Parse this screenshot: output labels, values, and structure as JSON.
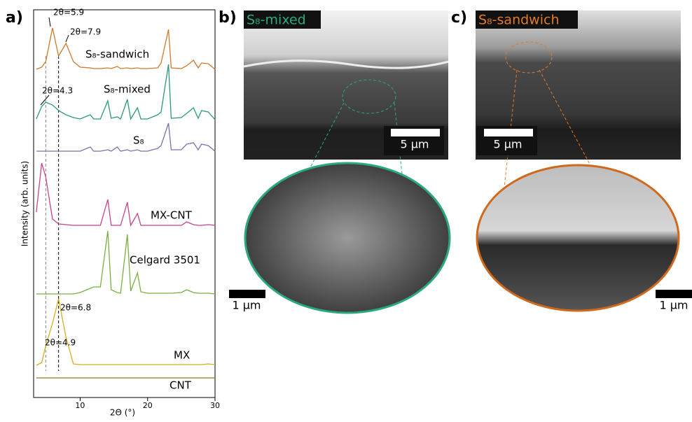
{
  "panels": {
    "a": "a)",
    "b": "b)",
    "c": "c)"
  },
  "chart_data": {
    "type": "line",
    "x_label": "2Θ (°)",
    "y_label": "Intensity (arb. units)",
    "xlim": [
      3.1,
      30
    ],
    "xticks": [
      10,
      20,
      30
    ],
    "x": [
      3.5,
      4.3,
      4.9,
      5.9,
      6.8,
      7.9,
      9,
      10,
      11.5,
      12,
      13,
      14.1,
      14.6,
      15.5,
      16,
      17,
      17.5,
      18.5,
      19,
      20,
      21.5,
      22,
      23.1,
      23.5,
      25,
      25.8,
      26.8,
      27.5,
      28,
      29,
      30
    ],
    "series": [
      {
        "name": "S₈-sandwich",
        "color": "#d07a2a",
        "values": [
          1,
          4,
          12,
          60,
          20,
          38,
          12,
          4,
          3,
          2,
          2,
          3,
          2,
          5,
          2,
          3,
          2,
          3,
          2,
          2,
          3,
          10,
          58,
          3,
          2,
          6,
          14,
          3,
          10,
          9,
          1
        ]
      },
      {
        "name": "S₈-mixed",
        "color": "#2a9a7a",
        "values": [
          2,
          20,
          26,
          22,
          14,
          8,
          4,
          2,
          8,
          2,
          2,
          28,
          3,
          5,
          2,
          30,
          2,
          18,
          2,
          2,
          8,
          12,
          80,
          3,
          4,
          10,
          18,
          3,
          14,
          12,
          1
        ]
      },
      {
        "name": "S₈",
        "color": "#7b72b0",
        "values": [
          0,
          0,
          0,
          0,
          0,
          0,
          0,
          0,
          6,
          0,
          0,
          2,
          0,
          6,
          0,
          2,
          0,
          2,
          0,
          0,
          4,
          8,
          40,
          2,
          2,
          10,
          12,
          2,
          10,
          8,
          0
        ]
      },
      {
        "name": "MX-CNT",
        "color": "#c8428a",
        "values": [
          20,
          90,
          70,
          10,
          3,
          2,
          1,
          1,
          1,
          1,
          1,
          38,
          1,
          1,
          1,
          34,
          1,
          18,
          1,
          1,
          1,
          1,
          1,
          1,
          1,
          6,
          2,
          1,
          1,
          2,
          1
        ]
      },
      {
        "name": "Celgard 3501",
        "color": "#78b040",
        "values": [
          0,
          0,
          0,
          0,
          0,
          0,
          0,
          2,
          8,
          10,
          10,
          90,
          6,
          2,
          1,
          85,
          4,
          30,
          3,
          1,
          1,
          1,
          1,
          1,
          2,
          6,
          2,
          1,
          1,
          1,
          0
        ]
      },
      {
        "name": "MX",
        "color": "#d4b020",
        "values": [
          0,
          4,
          28,
          60,
          95,
          40,
          2,
          1,
          1,
          1,
          1,
          1,
          1,
          1,
          1,
          1,
          1,
          1,
          1,
          1,
          1,
          1,
          1,
          1,
          1,
          1,
          1,
          1,
          1,
          2,
          1
        ]
      },
      {
        "name": "CNT",
        "color": "#8a7a20",
        "values": [
          0,
          0,
          0,
          0,
          0,
          0,
          0,
          0,
          0,
          0,
          0,
          0,
          0,
          0,
          0,
          0,
          0,
          0,
          0,
          0,
          0,
          0,
          0,
          0,
          0,
          0,
          0,
          0,
          0,
          0,
          0
        ]
      }
    ],
    "vlines": [
      {
        "value": 4.9,
        "color": "#888888"
      },
      {
        "value": 6.8,
        "color": "#000000"
      }
    ],
    "annotations": [
      "2θ=5.9",
      "2θ=7.9",
      "2θ=4.3",
      "2θ=6.8",
      "2θ=4.9"
    ]
  },
  "sem": {
    "b": {
      "label": "S₈-mixed",
      "scale_main": "5 μm",
      "scale_zoom": "1 μm"
    },
    "c": {
      "label": "S₈-sandwich",
      "scale_main": "5 μm",
      "scale_zoom": "1 μm"
    }
  }
}
